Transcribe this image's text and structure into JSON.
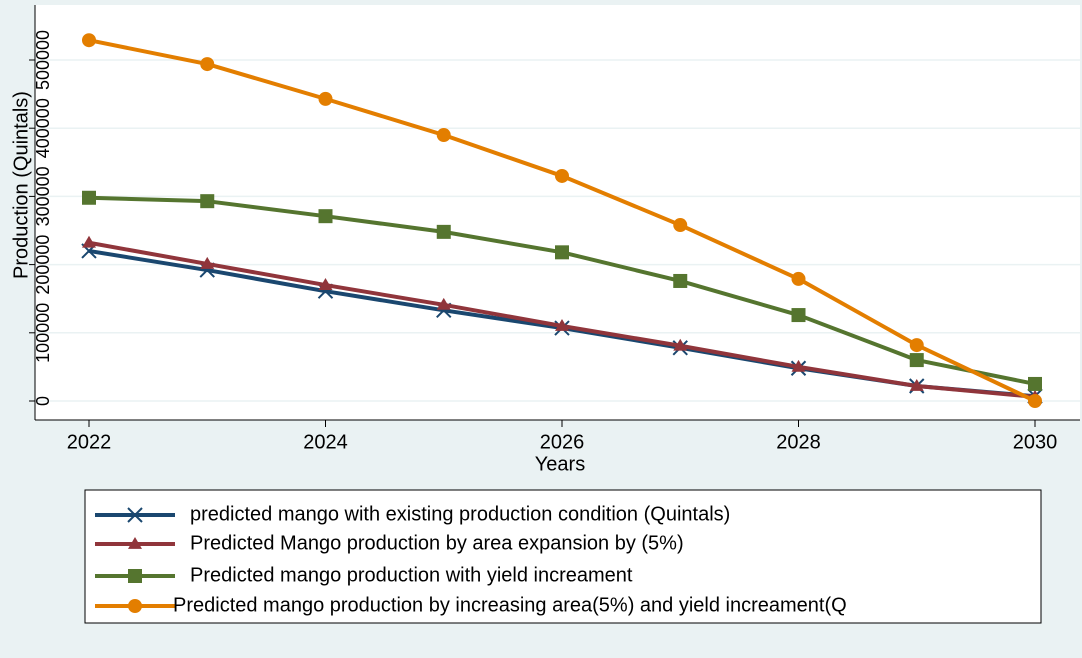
{
  "chart_data": {
    "type": "line",
    "x_label": "Years",
    "y_label": "Production (Quintals)",
    "x": [
      2022,
      2023,
      2024,
      2025,
      2026,
      2027,
      2028,
      2029,
      2030
    ],
    "xlim": [
      2022,
      2030
    ],
    "xticks": [
      2022,
      2024,
      2026,
      2028,
      2030
    ],
    "ylim": [
      0,
      500000
    ],
    "yticks": [
      0,
      100000,
      200000,
      300000,
      400000,
      500000
    ],
    "grid": true,
    "legend": "bottom",
    "series": [
      {
        "name": "predicted mango with existing production condition (Quintals)",
        "color": "#1a476f",
        "marker": "x",
        "values": [
          220000,
          192000,
          161000,
          133000,
          107000,
          78000,
          48000,
          22000,
          7000
        ]
      },
      {
        "name": "Predicted Mango production by area expansion by (5%)",
        "color": "#90353b",
        "marker": "triangle",
        "values": [
          232000,
          201000,
          170000,
          141000,
          110000,
          81000,
          50000,
          22000,
          6000
        ]
      },
      {
        "name": "Predicted mango production with yield increament",
        "color": "#55752f",
        "marker": "square",
        "values": [
          298000,
          293000,
          271000,
          248000,
          218000,
          176000,
          126000,
          60000,
          25000
        ]
      },
      {
        "name": "Predicted mango production by increasing area(5%) and yield increament(Q",
        "color": "#e37e00",
        "marker": "circle",
        "values": [
          529000,
          494000,
          443000,
          390000,
          330000,
          258000,
          179000,
          82000,
          0
        ]
      }
    ]
  }
}
